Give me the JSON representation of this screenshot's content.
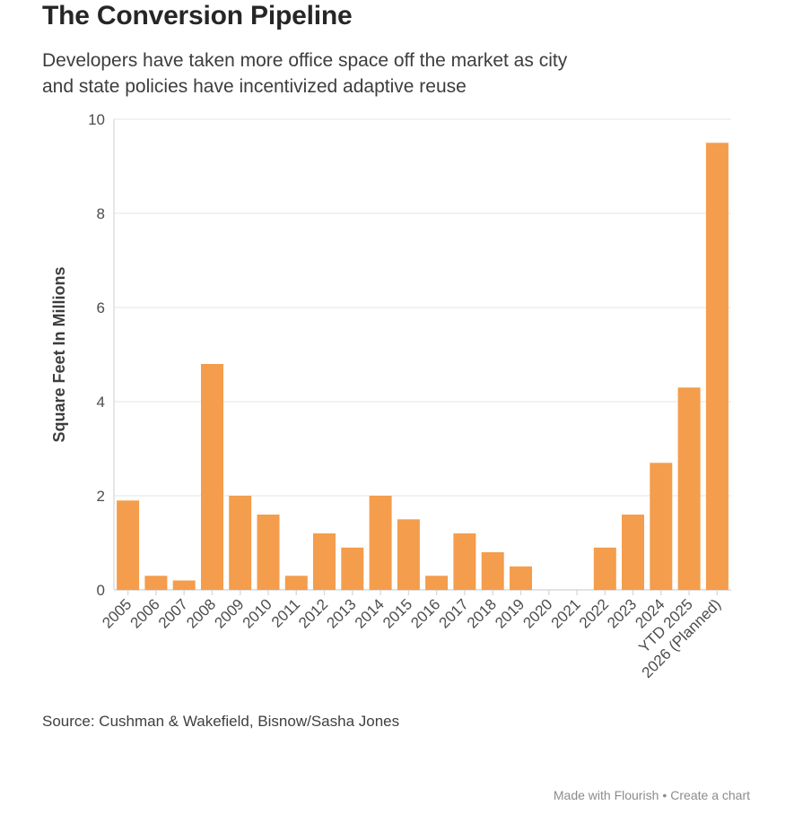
{
  "header": {
    "title": "The Conversion Pipeline",
    "subtitle": "Developers have taken more office space off the market as city and state policies have incentivized adaptive reuse",
    "subtitle_lines": [
      "Developers have taken more office space off the market as city",
      "and state policies have incentivized adaptive reuse"
    ]
  },
  "chart_data": {
    "type": "bar",
    "title": "The Conversion Pipeline",
    "xlabel": "",
    "ylabel": "Square Feet In Millions",
    "categories": [
      "2005",
      "2006",
      "2007",
      "2008",
      "2009",
      "2010",
      "2011",
      "2012",
      "2013",
      "2014",
      "2015",
      "2016",
      "2017",
      "2018",
      "2019",
      "2020",
      "2021",
      "2022",
      "2023",
      "2024",
      "YTD 2025",
      "2026 (Planned)"
    ],
    "values": [
      1.9,
      0.3,
      0.2,
      4.8,
      2.0,
      1.6,
      0.3,
      1.2,
      0.9,
      2.0,
      1.5,
      0.3,
      1.2,
      0.8,
      0.5,
      0,
      0,
      0.9,
      1.6,
      2.7,
      4.3,
      9.5
    ],
    "ylim": [
      0,
      10
    ],
    "yticks": [
      0,
      2,
      4,
      6,
      8,
      10
    ],
    "grid": true,
    "legend": "none",
    "colors": {
      "bar": "#F49D4C",
      "gridline": "#EBEBEB",
      "axis": "#D8D8D8",
      "tick_label": "#4D4D4D",
      "axis_title": "#3D3D3D"
    }
  },
  "source": {
    "label": "Source: Cushman & Wakefield, Bisnow/Sasha Jones"
  },
  "footer": {
    "made_with": "Made with Flourish",
    "separator": "•",
    "create_chart": "Create a chart"
  }
}
